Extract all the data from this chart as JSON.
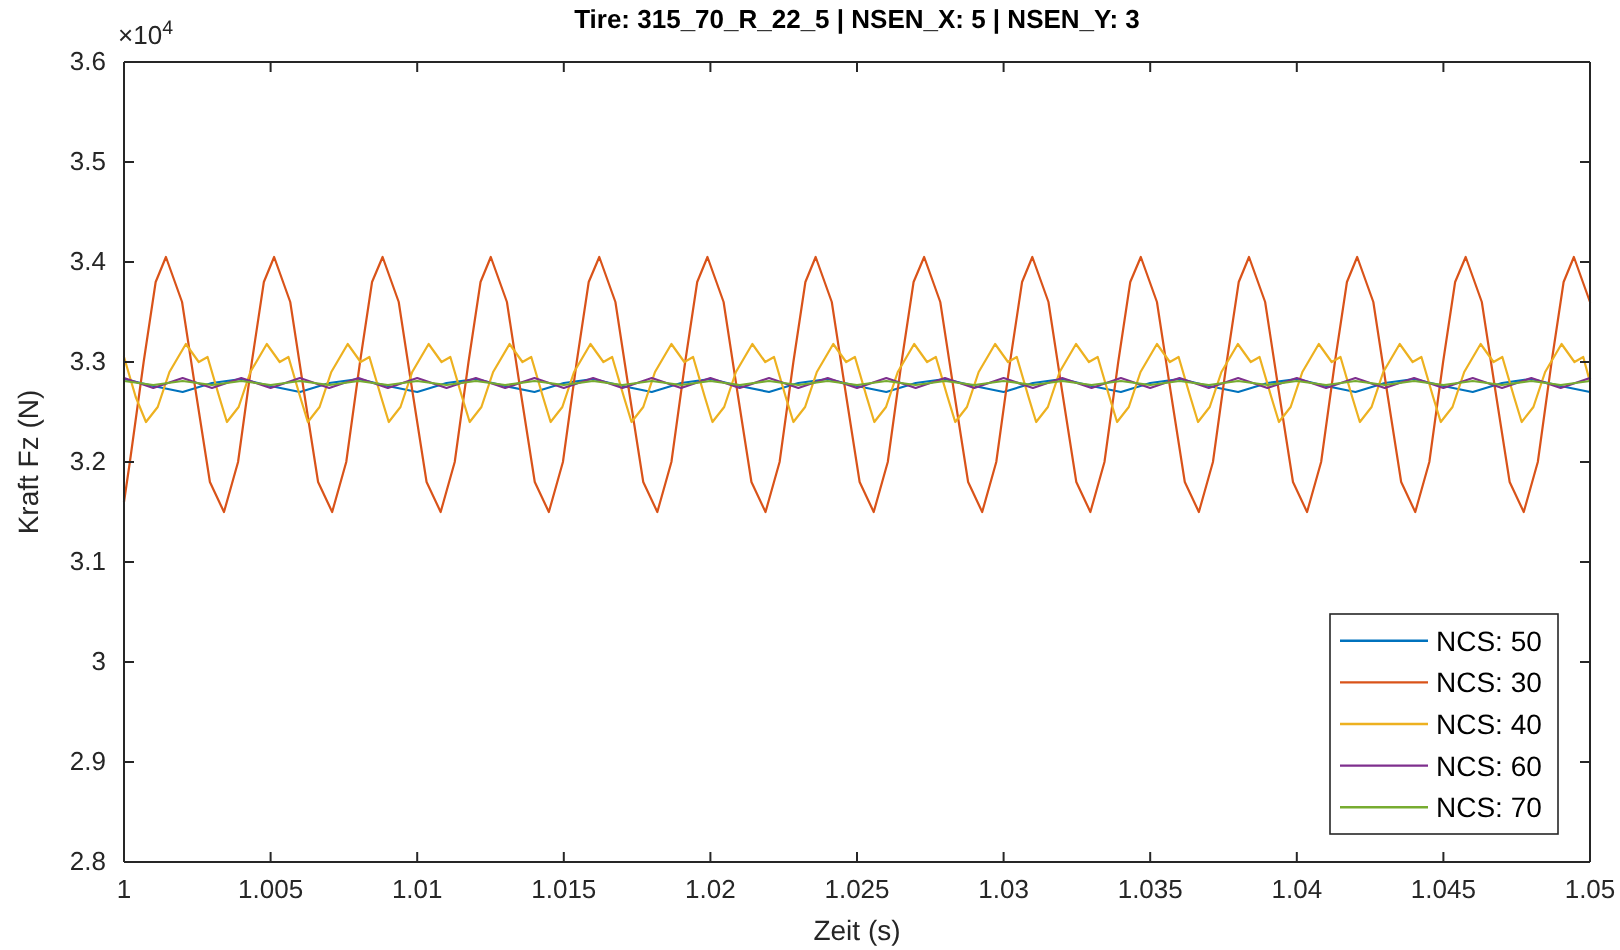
{
  "chart_data": {
    "type": "line",
    "title": "Tire: 315_70_R_22_5 | NSEN_X: 5 | NSEN_Y: 3",
    "xlabel": "Zeit (s)",
    "ylabel": "Kraft Fz (N)",
    "annotations": [
      "×10$^{4}$"
    ],
    "xlim": [
      1,
      1.05
    ],
    "xticks": [
      1,
      1.005,
      1.01,
      1.015,
      1.02,
      1.025,
      1.03,
      1.035,
      1.04,
      1.045,
      1.05
    ],
    "ylim": [
      2.8,
      3.6
    ],
    "yticks": [
      2.8,
      2.9,
      3,
      3.1,
      3.2,
      3.3,
      3.4,
      3.5,
      3.6
    ],
    "grid": false,
    "legend": "bottom right",
    "x": [
      1,
      1.001,
      1.002,
      1.003,
      1.004,
      1.005,
      1.006,
      1.007,
      1.008,
      1.009,
      1.01,
      1.011,
      1.012,
      1.013,
      1.014,
      1.015,
      1.016,
      1.017,
      1.018,
      1.019,
      1.02,
      1.021,
      1.022,
      1.023,
      1.024,
      1.025,
      1.026,
      1.027,
      1.028,
      1.029,
      1.03,
      1.031,
      1.032,
      1.033,
      1.034,
      1.035,
      1.036,
      1.037,
      1.038,
      1.039,
      1.04,
      1.041,
      1.042,
      1.043,
      1.044,
      1.045,
      1.046,
      1.047,
      1.048,
      1.049,
      1.05
    ],
    "series": [
      {
        "name": "NCS: 50",
        "color": "#0072bd",
        "values": [
          3.283,
          3.276,
          3.27,
          3.279,
          3.283,
          3.276,
          3.27,
          3.279,
          3.283,
          3.276,
          3.27,
          3.279,
          3.283,
          3.276,
          3.27,
          3.279,
          3.283,
          3.276,
          3.27,
          3.279,
          3.283,
          3.276,
          3.27,
          3.279,
          3.283,
          3.276,
          3.27,
          3.279,
          3.283,
          3.276,
          3.27,
          3.279,
          3.283,
          3.276,
          3.27,
          3.279,
          3.283,
          3.276,
          3.27,
          3.279,
          3.283,
          3.276,
          3.27,
          3.279,
          3.283,
          3.276,
          3.27,
          3.279,
          3.283,
          3.276,
          3.27
        ]
      },
      {
        "name": "NCS: 30",
        "color": "#d95319",
        "x": [
          1,
          1.0002,
          1.00067,
          1.00108,
          1.00143,
          1.00198,
          1.00245,
          1.00293,
          1.00341,
          1.00389,
          1.00436,
          1.00477,
          1.00512,
          1.00567,
          1.00614,
          1.00662,
          1.0071,
          1.00758,
          1.00805,
          1.00846,
          1.00882,
          1.00937,
          1.00984,
          1.01032,
          1.0108,
          1.01128,
          1.01175,
          1.01216,
          1.01251,
          1.01306,
          1.01353,
          1.01401,
          1.01449,
          1.01497,
          1.01544,
          1.01585,
          1.01621,
          1.01676,
          1.01723,
          1.01771,
          1.01819,
          1.01867,
          1.01914,
          1.01955,
          1.0199,
          1.02045,
          1.02092,
          1.0214,
          1.02188,
          1.02236,
          1.02283,
          1.02324,
          1.02359,
          1.02414,
          1.02461,
          1.02509,
          1.02557,
          1.02605,
          1.02652,
          1.02693,
          1.02729,
          1.02784,
          1.02831,
          1.02879,
          1.02927,
          1.02975,
          1.03022,
          1.03063,
          1.03098,
          1.03153,
          1.032,
          1.03248,
          1.03296,
          1.03344,
          1.03391,
          1.03432,
          1.03468,
          1.03523,
          1.0357,
          1.03618,
          1.03666,
          1.03714,
          1.03761,
          1.03802,
          1.03837,
          1.03892,
          1.03939,
          1.03987,
          1.04035,
          1.04083,
          1.0413,
          1.04171,
          1.04206,
          1.04261,
          1.04308,
          1.04356,
          1.04404,
          1.04452,
          1.04499,
          1.0454,
          1.04576,
          1.04631,
          1.04678,
          1.04726,
          1.04774,
          1.04822,
          1.04869,
          1.0491,
          1.04945,
          1.05
        ],
        "values": [
          3.16,
          3.2,
          3.3,
          3.38,
          3.405,
          3.36,
          3.27,
          3.18,
          3.15,
          3.2,
          3.3,
          3.38,
          3.405,
          3.36,
          3.27,
          3.18,
          3.15,
          3.2,
          3.3,
          3.38,
          3.405,
          3.36,
          3.27,
          3.18,
          3.15,
          3.2,
          3.3,
          3.38,
          3.405,
          3.36,
          3.27,
          3.18,
          3.15,
          3.2,
          3.3,
          3.38,
          3.405,
          3.36,
          3.27,
          3.18,
          3.15,
          3.2,
          3.3,
          3.38,
          3.405,
          3.36,
          3.27,
          3.18,
          3.15,
          3.2,
          3.3,
          3.38,
          3.405,
          3.36,
          3.27,
          3.18,
          3.15,
          3.2,
          3.3,
          3.38,
          3.405,
          3.36,
          3.27,
          3.18,
          3.15,
          3.2,
          3.3,
          3.38,
          3.405,
          3.36,
          3.27,
          3.18,
          3.15,
          3.2,
          3.3,
          3.38,
          3.405,
          3.36,
          3.27,
          3.18,
          3.15,
          3.2,
          3.3,
          3.38,
          3.405,
          3.36,
          3.27,
          3.18,
          3.15,
          3.2,
          3.3,
          3.38,
          3.405,
          3.36,
          3.27,
          3.18,
          3.15,
          3.2,
          3.3,
          3.38,
          3.405,
          3.36,
          3.27,
          3.18,
          3.15,
          3.2,
          3.3,
          3.38,
          3.405,
          3.36
        ]
      },
      {
        "name": "NCS: 40",
        "color": "#edb120",
        "x": [
          1,
          1.0004,
          1.00075,
          1.00115,
          1.00155,
          1.00211,
          1.00255,
          1.00285,
          1.00325,
          1.00351,
          1.00391,
          1.00431,
          1.00487,
          1.00531,
          1.00561,
          1.00601,
          1.00627,
          1.00667,
          1.00707,
          1.00763,
          1.00807,
          1.00837,
          1.00877,
          1.00903,
          1.00943,
          1.00983,
          1.01039,
          1.01083,
          1.01113,
          1.01153,
          1.01179,
          1.01219,
          1.01259,
          1.01315,
          1.01359,
          1.01389,
          1.01429,
          1.01455,
          1.01495,
          1.01535,
          1.01591,
          1.01635,
          1.01665,
          1.01705,
          1.01731,
          1.01771,
          1.01811,
          1.01867,
          1.01911,
          1.01941,
          1.01981,
          1.02007,
          1.02047,
          1.02087,
          1.02143,
          1.02187,
          1.02217,
          1.02257,
          1.02283,
          1.02323,
          1.02363,
          1.02419,
          1.02463,
          1.02493,
          1.02533,
          1.02559,
          1.02599,
          1.02639,
          1.02695,
          1.02739,
          1.02769,
          1.02809,
          1.02835,
          1.02875,
          1.02915,
          1.02971,
          1.03015,
          1.03045,
          1.03085,
          1.03111,
          1.03151,
          1.03191,
          1.03247,
          1.03291,
          1.03321,
          1.03361,
          1.03387,
          1.03427,
          1.03467,
          1.03523,
          1.03567,
          1.03597,
          1.03637,
          1.03663,
          1.03703,
          1.03743,
          1.03799,
          1.03843,
          1.03873,
          1.03913,
          1.03939,
          1.03979,
          1.04019,
          1.04075,
          1.04119,
          1.04149,
          1.04189,
          1.04215,
          1.04255,
          1.04295,
          1.04351,
          1.04395,
          1.04425,
          1.04465,
          1.04491,
          1.04531,
          1.04571,
          1.04627,
          1.04671,
          1.04701,
          1.04741,
          1.04767,
          1.04807,
          1.04847,
          1.04903,
          1.04947,
          1.04977,
          1.05
        ],
        "values": [
          3.305,
          3.265,
          3.24,
          3.255,
          3.29,
          3.318,
          3.3,
          3.305,
          3.265,
          3.24,
          3.255,
          3.29,
          3.318,
          3.3,
          3.305,
          3.265,
          3.24,
          3.255,
          3.29,
          3.318,
          3.3,
          3.305,
          3.265,
          3.24,
          3.255,
          3.29,
          3.318,
          3.3,
          3.305,
          3.265,
          3.24,
          3.255,
          3.29,
          3.318,
          3.3,
          3.305,
          3.265,
          3.24,
          3.255,
          3.29,
          3.318,
          3.3,
          3.305,
          3.265,
          3.24,
          3.255,
          3.29,
          3.318,
          3.3,
          3.305,
          3.265,
          3.24,
          3.255,
          3.29,
          3.318,
          3.3,
          3.305,
          3.265,
          3.24,
          3.255,
          3.29,
          3.318,
          3.3,
          3.305,
          3.265,
          3.24,
          3.255,
          3.29,
          3.318,
          3.3,
          3.305,
          3.265,
          3.24,
          3.255,
          3.29,
          3.318,
          3.3,
          3.305,
          3.265,
          3.24,
          3.255,
          3.29,
          3.318,
          3.3,
          3.305,
          3.265,
          3.24,
          3.255,
          3.29,
          3.318,
          3.3,
          3.305,
          3.265,
          3.24,
          3.255,
          3.29,
          3.318,
          3.3,
          3.305,
          3.265,
          3.24,
          3.255,
          3.29,
          3.318,
          3.3,
          3.305,
          3.265,
          3.24,
          3.255,
          3.29,
          3.318,
          3.3,
          3.305,
          3.265,
          3.24,
          3.255,
          3.29,
          3.318,
          3.3,
          3.305,
          3.265,
          3.24,
          3.255,
          3.29,
          3.318,
          3.3,
          3.305,
          3.28
        ]
      },
      {
        "name": "NCS: 60",
        "color": "#7e2f8e",
        "values": [
          3.284,
          3.274,
          3.284,
          3.274,
          3.284,
          3.274,
          3.284,
          3.274,
          3.284,
          3.274,
          3.284,
          3.274,
          3.284,
          3.274,
          3.284,
          3.274,
          3.284,
          3.274,
          3.284,
          3.274,
          3.284,
          3.274,
          3.284,
          3.274,
          3.284,
          3.274,
          3.284,
          3.274,
          3.284,
          3.274,
          3.284,
          3.274,
          3.284,
          3.274,
          3.284,
          3.274,
          3.284,
          3.274,
          3.284,
          3.274,
          3.284,
          3.274,
          3.284,
          3.274,
          3.284,
          3.274,
          3.284,
          3.274,
          3.284,
          3.274,
          3.284
        ]
      },
      {
        "name": "NCS: 70",
        "color": "#77ac30",
        "values": [
          3.281,
          3.277,
          3.281,
          3.277,
          3.281,
          3.277,
          3.281,
          3.277,
          3.281,
          3.277,
          3.281,
          3.277,
          3.281,
          3.277,
          3.281,
          3.277,
          3.281,
          3.277,
          3.281,
          3.277,
          3.281,
          3.277,
          3.281,
          3.277,
          3.281,
          3.277,
          3.281,
          3.277,
          3.281,
          3.277,
          3.281,
          3.277,
          3.281,
          3.277,
          3.281,
          3.277,
          3.281,
          3.277,
          3.281,
          3.277,
          3.281,
          3.277,
          3.281,
          3.277,
          3.281,
          3.277,
          3.281,
          3.277,
          3.281,
          3.277,
          3.281
        ]
      }
    ]
  }
}
